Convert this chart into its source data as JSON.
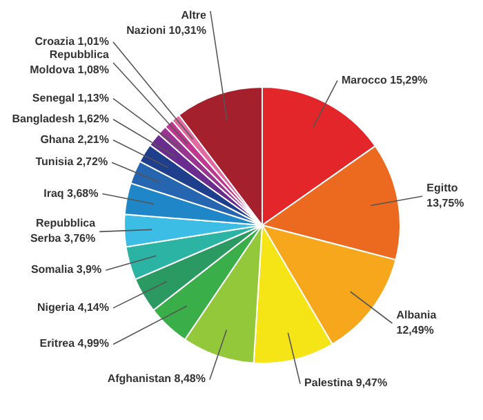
{
  "chart_data": {
    "type": "pie",
    "categories": [
      "Marocco",
      "Egitto",
      "Albania",
      "Palestina",
      "Afghanistan",
      "Eritrea",
      "Nigeria",
      "Somalia",
      "Repubblica Serba",
      "Iraq",
      "Tunisia",
      "Ghana",
      "Bangladesh",
      "Senegal",
      "Repubblica Moldova",
      "Croazia",
      "Altre Nazioni"
    ],
    "values": [
      15.29,
      13.75,
      12.49,
      9.47,
      8.48,
      4.99,
      4.14,
      3.9,
      3.76,
      3.68,
      2.72,
      2.21,
      1.62,
      1.13,
      1.08,
      1.01,
      10.31
    ],
    "value_labels": [
      "15,29%",
      "13,75%",
      "12,49%",
      "9,47%",
      "8,48%",
      "4,99%",
      "4,14%",
      "3,9%",
      "3,76%",
      "3,68%",
      "2,72%",
      "2,21%",
      "1,62%",
      "1,13%",
      "1,08%",
      "1,01%",
      "10,31%"
    ],
    "colors": [
      "#e3262a",
      "#ec6a1f",
      "#f6a71b",
      "#f5e416",
      "#93c83a",
      "#3aae48",
      "#2b9a62",
      "#2bb3a4",
      "#3cbde6",
      "#1f86c8",
      "#2666b0",
      "#1f3f8c",
      "#6a2c8e",
      "#9a3492",
      "#c0378f",
      "#e06aa0",
      "#a3202c"
    ],
    "data_labels": true
  }
}
